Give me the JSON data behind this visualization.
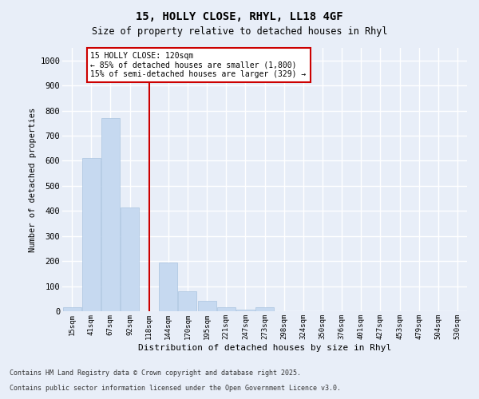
{
  "title_line1": "15, HOLLY CLOSE, RHYL, LL18 4GF",
  "title_line2": "Size of property relative to detached houses in Rhyl",
  "xlabel": "Distribution of detached houses by size in Rhyl",
  "ylabel": "Number of detached properties",
  "categories": [
    "15sqm",
    "41sqm",
    "67sqm",
    "92sqm",
    "118sqm",
    "144sqm",
    "170sqm",
    "195sqm",
    "221sqm",
    "247sqm",
    "273sqm",
    "298sqm",
    "324sqm",
    "350sqm",
    "376sqm",
    "401sqm",
    "427sqm",
    "453sqm",
    "479sqm",
    "504sqm",
    "530sqm"
  ],
  "values": [
    15,
    610,
    770,
    415,
    0,
    195,
    80,
    40,
    15,
    5,
    15,
    0,
    0,
    0,
    0,
    0,
    0,
    0,
    0,
    0,
    0
  ],
  "bar_color": "#c6d9f0",
  "bar_edge_color": "#aac4e0",
  "red_line_x": 4.0,
  "red_line_color": "#cc0000",
  "annotation_line1": "15 HOLLY CLOSE: 120sqm",
  "annotation_line2": "← 85% of detached houses are smaller (1,800)",
  "annotation_line3": "15% of semi-detached houses are larger (329) →",
  "annotation_box_edgecolor": "#cc0000",
  "ylim": [
    0,
    1050
  ],
  "yticks": [
    0,
    100,
    200,
    300,
    400,
    500,
    600,
    700,
    800,
    900,
    1000
  ],
  "footnote_line1": "Contains HM Land Registry data © Crown copyright and database right 2025.",
  "footnote_line2": "Contains public sector information licensed under the Open Government Licence v3.0.",
  "bg_color": "#e8eef8",
  "grid_color": "#ffffff"
}
